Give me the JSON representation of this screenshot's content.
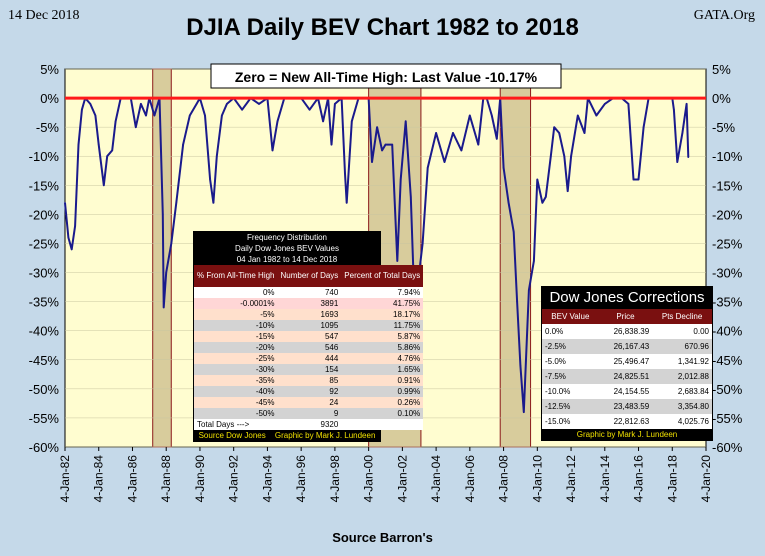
{
  "header": {
    "date": "14 Dec 2018",
    "site": "GATA.Org",
    "title": "DJIA Daily BEV Chart 1982 to 2018",
    "source": "Source Barron's"
  },
  "chart_data": {
    "type": "area",
    "title": "DJIA Daily BEV Chart 1982 to 2018",
    "annotation": "Zero = New All-Time High: Last Value  -10.17%",
    "xlabel": "",
    "ylabel": "",
    "x_range": [
      1982,
      2020
    ],
    "ylim": [
      -60,
      5
    ],
    "y_ticks": [
      5,
      0,
      -5,
      -10,
      -15,
      -20,
      -25,
      -30,
      -35,
      -40,
      -45,
      -50,
      -55,
      -60
    ],
    "y_tick_labels": [
      "5%",
      "0%",
      "-5%",
      "-10%",
      "-15%",
      "-20%",
      "-25%",
      "-30%",
      "-35%",
      "-40%",
      "-45%",
      "-50%",
      "-55%",
      "-60%"
    ],
    "x_ticks": [
      1982,
      1984,
      1986,
      1988,
      1990,
      1992,
      1994,
      1996,
      1998,
      2000,
      2002,
      2004,
      2006,
      2008,
      2010,
      2012,
      2014,
      2016,
      2018,
      2020
    ],
    "x_tick_labels": [
      "4-Jan-82",
      "4-Jan-84",
      "4-Jan-86",
      "4-Jan-88",
      "4-Jan-90",
      "4-Jan-92",
      "4-Jan-94",
      "4-Jan-96",
      "4-Jan-98",
      "4-Jan-00",
      "4-Jan-02",
      "4-Jan-04",
      "4-Jan-06",
      "4-Jan-08",
      "4-Jan-10",
      "4-Jan-12",
      "4-Jan-14",
      "4-Jan-16",
      "4-Jan-18",
      "4-Jan-20"
    ],
    "shaded_periods": [
      [
        1987.2,
        1988.3
      ],
      [
        2000.0,
        2003.1
      ],
      [
        2007.8,
        2009.6
      ]
    ],
    "series": [
      {
        "name": "DJIA BEV",
        "color": "#1a1a8c",
        "x": [
          1982.0,
          1982.2,
          1982.4,
          1982.6,
          1982.8,
          1983.0,
          1983.2,
          1983.5,
          1983.8,
          1984.0,
          1984.3,
          1984.5,
          1984.8,
          1985.0,
          1985.3,
          1985.6,
          1985.9,
          1986.2,
          1986.5,
          1986.8,
          1987.0,
          1987.3,
          1987.6,
          1987.8,
          1987.85,
          1988.0,
          1988.3,
          1988.6,
          1989.0,
          1989.4,
          1989.8,
          1990.0,
          1990.3,
          1990.6,
          1990.8,
          1991.0,
          1991.3,
          1991.6,
          1992.0,
          1992.5,
          1993.0,
          1993.5,
          1994.0,
          1994.3,
          1994.6,
          1995.0,
          1995.5,
          1996.0,
          1996.5,
          1997.0,
          1997.3,
          1997.6,
          1997.8,
          1998.0,
          1998.4,
          1998.6,
          1998.7,
          1999.0,
          1999.4,
          1999.8,
          2000.0,
          2000.2,
          2000.5,
          2000.8,
          2001.0,
          2001.4,
          2001.7,
          2001.9,
          2002.2,
          2002.5,
          2002.75,
          2003.0,
          2003.2,
          2003.5,
          2004.0,
          2004.5,
          2005.0,
          2005.5,
          2006.0,
          2006.5,
          2006.8,
          2007.0,
          2007.3,
          2007.6,
          2007.8,
          2008.0,
          2008.3,
          2008.6,
          2008.8,
          2009.0,
          2009.2,
          2009.5,
          2009.8,
          2010.0,
          2010.3,
          2010.5,
          2010.8,
          2011.0,
          2011.3,
          2011.6,
          2011.8,
          2012.0,
          2012.4,
          2012.8,
          2013.0,
          2013.5,
          2014.0,
          2014.5,
          2015.0,
          2015.4,
          2015.7,
          2016.0,
          2016.3,
          2016.6,
          2017.0,
          2017.5,
          2018.0,
          2018.1,
          2018.3,
          2018.6,
          2018.75,
          2018.85,
          2018.95
        ],
        "y": [
          -18,
          -24,
          -26,
          -22,
          -8,
          -2,
          0,
          -1,
          -3,
          -8,
          -15,
          -10,
          -9,
          -4,
          0,
          0,
          0,
          -5,
          -1,
          -3,
          0,
          -3,
          0,
          -20,
          -36,
          -30,
          -25,
          -18,
          -8,
          -3,
          -1,
          0,
          -3,
          -14,
          -18,
          -10,
          -3,
          -1,
          0,
          -2,
          0,
          -1,
          0,
          -9,
          -4,
          0,
          0,
          0,
          -2,
          0,
          -4,
          0,
          -8,
          -1,
          0,
          -13,
          -18,
          -4,
          0,
          0,
          0,
          -11,
          -5,
          -9,
          -8,
          -8,
          -28,
          -14,
          -4,
          -17,
          -38,
          -30,
          -25,
          -12,
          -6,
          -11,
          -6,
          -9,
          -3,
          -8,
          0,
          0,
          -3,
          -7,
          0,
          -12,
          -18,
          -23,
          -35,
          -46,
          -54,
          -33,
          -28,
          -14,
          -18,
          -17,
          -10,
          -5,
          -6,
          -10,
          -16,
          -10,
          -3,
          -6,
          0,
          -3,
          -1,
          0,
          0,
          -1,
          -14,
          -14,
          -5,
          0,
          0,
          0,
          0,
          -2,
          -11,
          -6,
          -3,
          -1,
          -10.17
        ]
      }
    ],
    "reference_line": {
      "y": 0,
      "color": "#ff1a1a"
    }
  },
  "frequency_table": {
    "title_lines": [
      "Frequency Distribution",
      "Daily Dow Jones BEV Values",
      "04 Jan 1982 to 14 Dec 2018"
    ],
    "columns": [
      "% From All-Time High",
      "Number of Days",
      "Percent of Total Days"
    ],
    "rows": [
      [
        "0%",
        "740",
        "7.94%"
      ],
      [
        "-0.0001%",
        "3891",
        "41.75%"
      ],
      [
        "-5%",
        "1693",
        "18.17%"
      ],
      [
        "-10%",
        "1095",
        "11.75%"
      ],
      [
        "-15%",
        "547",
        "5.87%"
      ],
      [
        "-20%",
        "546",
        "5.86%"
      ],
      [
        "-25%",
        "444",
        "4.76%"
      ],
      [
        "-30%",
        "154",
        "1.65%"
      ],
      [
        "-35%",
        "85",
        "0.91%"
      ],
      [
        "-40%",
        "92",
        "0.99%"
      ],
      [
        "-45%",
        "24",
        "0.26%"
      ],
      [
        "-50%",
        "9",
        "0.10%"
      ]
    ],
    "total_label": "Total Days --->",
    "total_value": "9320",
    "footer_left": "Source Dow Jones",
    "footer_right": "Graphic by Mark J. Lundeen"
  },
  "corrections_table": {
    "title": "Dow Jones Corrections",
    "columns": [
      "BEV Value",
      "Price",
      "Pts Decline"
    ],
    "rows": [
      [
        "0.0%",
        "26,838.39",
        "0.00"
      ],
      [
        "-2.5%",
        "26,167.43",
        "670.96"
      ],
      [
        "-5.0%",
        "25,496.47",
        "1,341.92"
      ],
      [
        "-7.5%",
        "24,825.51",
        "2,012.88"
      ],
      [
        "-10.0%",
        "24,154.55",
        "2,683.84"
      ],
      [
        "-12.5%",
        "23,483.59",
        "3,354.80"
      ],
      [
        "-15.0%",
        "22,812.63",
        "4,025.76"
      ]
    ],
    "footer": "Graphic by Mark J. Lundeen"
  }
}
